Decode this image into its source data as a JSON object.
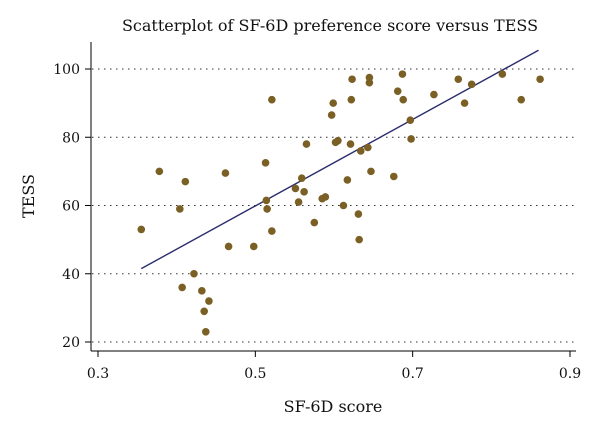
{
  "chart_data": {
    "type": "scatter",
    "title": "Scatterplot of SF-6D preference score versus TESS",
    "xlabel": "SF-6D score",
    "ylabel": "TESS",
    "xlim": [
      0.3,
      0.9
    ],
    "ylim": [
      20,
      107
    ],
    "xticks": [
      "0.3",
      "0.5",
      "0.7",
      "0.9"
    ],
    "xtick_values": [
      0.3,
      0.5,
      0.7,
      0.9
    ],
    "yticks": [
      "20",
      "40",
      "60",
      "80",
      "100"
    ],
    "ytick_values": [
      20,
      40,
      60,
      80,
      100
    ],
    "grid": "horizontal-dotted",
    "point_color": "#7a6024",
    "line_color": "#2b2d6e",
    "points": [
      [
        0.355,
        53
      ],
      [
        0.378,
        70
      ],
      [
        0.404,
        59
      ],
      [
        0.407,
        36
      ],
      [
        0.411,
        67
      ],
      [
        0.422,
        40
      ],
      [
        0.432,
        35
      ],
      [
        0.435,
        29
      ],
      [
        0.437,
        23
      ],
      [
        0.441,
        32
      ],
      [
        0.462,
        69.5
      ],
      [
        0.466,
        48
      ],
      [
        0.498,
        48
      ],
      [
        0.513,
        72.5
      ],
      [
        0.514,
        61.5
      ],
      [
        0.515,
        59
      ],
      [
        0.521,
        91
      ],
      [
        0.521,
        52.5
      ],
      [
        0.551,
        65
      ],
      [
        0.555,
        61
      ],
      [
        0.559,
        68
      ],
      [
        0.562,
        64
      ],
      [
        0.565,
        78
      ],
      [
        0.575,
        55
      ],
      [
        0.585,
        62
      ],
      [
        0.589,
        62.5
      ],
      [
        0.597,
        86.5
      ],
      [
        0.599,
        90
      ],
      [
        0.602,
        78.5
      ],
      [
        0.605,
        79
      ],
      [
        0.612,
        60
      ],
      [
        0.617,
        67.5
      ],
      [
        0.621,
        78
      ],
      [
        0.622,
        91
      ],
      [
        0.623,
        97
      ],
      [
        0.631,
        57.5
      ],
      [
        0.632,
        50
      ],
      [
        0.634,
        76
      ],
      [
        0.643,
        77
      ],
      [
        0.645,
        97.5
      ],
      [
        0.645,
        96
      ],
      [
        0.647,
        70
      ],
      [
        0.676,
        68.5
      ],
      [
        0.681,
        93.5
      ],
      [
        0.687,
        98.5
      ],
      [
        0.688,
        91
      ],
      [
        0.697,
        85
      ],
      [
        0.698,
        79.5
      ],
      [
        0.727,
        92.5
      ],
      [
        0.758,
        97
      ],
      [
        0.766,
        90
      ],
      [
        0.775,
        95.5
      ],
      [
        0.814,
        98.5
      ],
      [
        0.838,
        91
      ],
      [
        0.862,
        97
      ]
    ],
    "fit_line": {
      "x": [
        0.355,
        0.86
      ],
      "y": [
        41.5,
        105.5
      ]
    }
  }
}
